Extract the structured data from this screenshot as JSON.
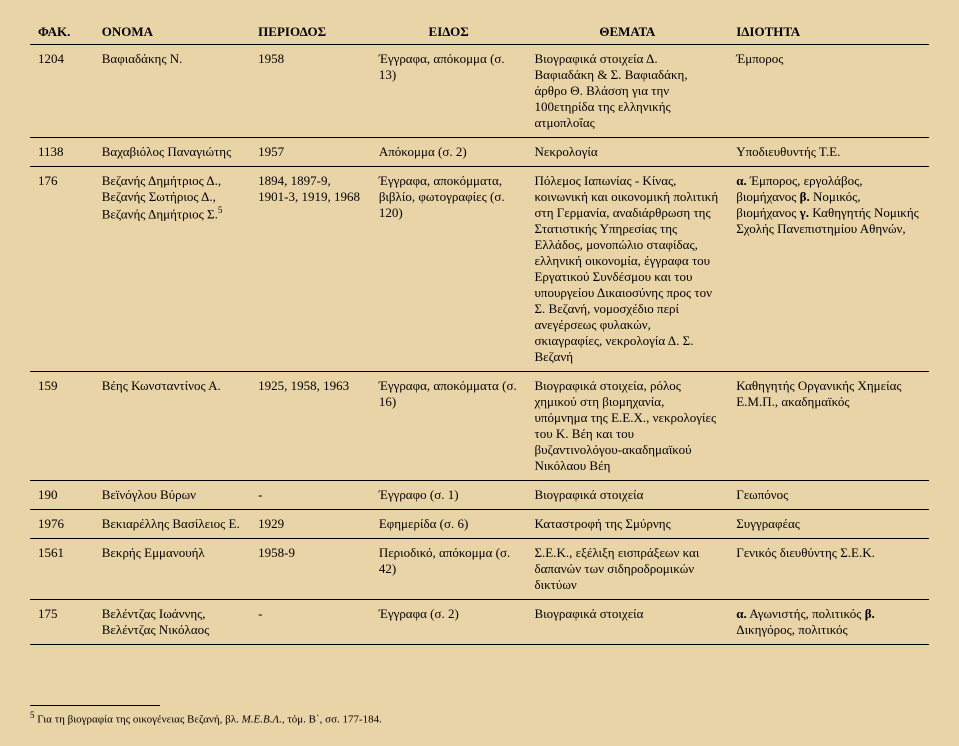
{
  "headers": {
    "fak": "ΦΑΚ.",
    "onoma": "ΟΝΟΜΑ",
    "periodos": "ΠΕΡΙΟΔΟΣ",
    "eidos": "ΕΙΔΟΣ",
    "themata": "ΘΕΜΑΤΑ",
    "idiotita": "ΙΔΙΟΤΗΤΑ"
  },
  "rows": [
    {
      "fak": "1204",
      "onoma": "Βαφιαδάκης Ν.",
      "periodos": "1958",
      "eidos": "Έγγραφα, απόκομμα (σ. 13)",
      "themata": "Βιογραφικά στοιχεία Δ. Βαφιαδάκη & Σ. Βαφιαδάκη, άρθρο Θ. Βλάσση για την 100ετηρίδα της ελληνικής ατμοπλοΐας",
      "idiotita": "Έμπορος"
    },
    {
      "fak": "1138",
      "onoma": "Βαχαβιόλος Παναγιώτης",
      "periodos": "1957",
      "eidos": "Απόκομμα (σ. 2)",
      "themata": "Νεκρολογία",
      "idiotita": "Υποδιευθυντής Τ.Ε."
    },
    {
      "fak": "176",
      "onoma_html": "Βεζανής Δημήτριος Δ., Βεζανής Σωτήριος Δ., Βεζανής Δημήτριος Σ.<sup>5</sup>",
      "periodos": "1894, 1897-9, 1901-3, 1919, 1968",
      "eidos": "Έγγραφα, αποκόμματα, βιβλίο, φωτογραφίες (σ. 120)",
      "themata": "Πόλεμος Ιαπωνίας - Κίνας, κοινωνική και οικονομική πολιτική στη Γερμανία, αναδιάρθρωση της Στατιστικής Υπηρεσίας της Ελλάδος, μονοπώλιο σταφίδας, ελληνική οικονομία, έγγραφα του Εργατικού Συνδέσμου και του υπουργείου Δικαιοσύνης προς τον Σ. Βεζανή, νομοσχέδιο περί ανεγέρσεως φυλακών, σκιαγραφίες, νεκρολογία Δ. Σ. Βεζανή",
      "idiotita_html": "<b>α.</b> Έμπορος, εργολάβος, βιομήχανος <b>β.</b> Νομικός, βιομήχανος <b>γ.</b> Καθηγητής Νομικής Σχολής Πανεπιστημίου Αθηνών,"
    },
    {
      "fak": "159",
      "onoma": "Βέης Κωνσταντίνος Α.",
      "periodos": "1925, 1958, 1963",
      "eidos": "Έγγραφα, αποκόμματα (σ. 16)",
      "themata": "Βιογραφικά στοιχεία, ρόλος χημικού στη βιομηχανία, υπόμνημα της Ε.Ε.Χ., νεκρολογίες του Κ. Βέη και του βυζαντινολόγου-ακαδημαϊκού Νικόλαου Βέη",
      "idiotita": "Καθηγητής Οργανικής Χημείας Ε.Μ.Π., ακαδημαϊκός"
    },
    {
      "fak": "190",
      "onoma": "Βεϊνόγλου Βύρων",
      "periodos": "-",
      "eidos": "Έγγραφο (σ. 1)",
      "themata": "Βιογραφικά στοιχεία",
      "idiotita": "Γεωπόνος"
    },
    {
      "fak": "1976",
      "onoma": "Βεκιαρέλλης Βασίλειος Ε.",
      "periodos": "1929",
      "eidos": "Εφημερίδα (σ. 6)",
      "themata": "Καταστροφή της Σμύρνης",
      "idiotita": "Συγγραφέας"
    },
    {
      "fak": "1561",
      "onoma": "Βεκρής Εμμανουήλ",
      "periodos": "1958-9",
      "eidos": "Περιοδικό, απόκομμα (σ. 42)",
      "themata": "Σ.Ε.Κ., εξέλιξη εισπράξεων και δαπανών των σιδηροδρομικών δικτύων",
      "idiotita": "Γενικός διευθύντης Σ.Ε.Κ."
    },
    {
      "fak": "175",
      "onoma": "Βελέντζας Ιωάννης, Βελέντζας Νικόλαος",
      "periodos": "-",
      "eidos": "Έγγραφα (σ. 2)",
      "themata": "Βιογραφικά στοιχεία",
      "idiotita_html": "<b>α.</b> Αγωνιστής, πολιτικός <b>β.</b> Δικηγόρος, πολιτικός"
    }
  ],
  "footnote_html": "<sup>5</sup> Για τη βιογραφία της οικογένειας Βεζανή, βλ. <i>Μ.Ε.Β.Λ.</i>, τόμ. Β΄, σσ. 177-184."
}
